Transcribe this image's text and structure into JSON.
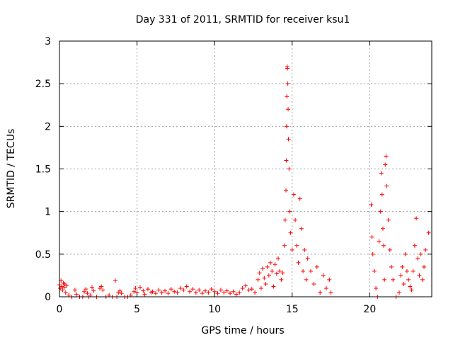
{
  "chart_data": {
    "type": "scatter",
    "title": "Day 331 of 2011, SRMTID for receiver ksu1",
    "xlabel": "GPS time / hours",
    "ylabel": "SRMTID / TECUs",
    "xlim": [
      0,
      24
    ],
    "ylim": [
      0,
      3
    ],
    "grid": true,
    "marker": "+",
    "color": "#ff0000",
    "x_ticks": [
      0,
      5,
      10,
      15,
      20
    ],
    "x_tick_labels": [
      "0",
      "5",
      "10",
      "15",
      "20"
    ],
    "y_ticks": [
      0,
      0.5,
      1,
      1.5,
      2,
      2.5,
      3
    ],
    "y_tick_labels": [
      "0",
      "0.5",
      "1",
      "1.5",
      "2",
      "2.5",
      "3"
    ],
    "series": [
      {
        "name": "ksu1",
        "points": [
          [
            0.0,
            0.14
          ],
          [
            0.05,
            0.1
          ],
          [
            0.1,
            0.19
          ],
          [
            0.15,
            0.12
          ],
          [
            0.2,
            0.08
          ],
          [
            0.25,
            0.16
          ],
          [
            0.3,
            0.11
          ],
          [
            0.35,
            0.15
          ],
          [
            0.4,
            0.05
          ],
          [
            0.45,
            0.13
          ],
          [
            0.6,
            0.02
          ],
          [
            0.8,
            0.0
          ],
          [
            1.0,
            0.08
          ],
          [
            1.1,
            0.03
          ],
          [
            1.3,
            0.0
          ],
          [
            1.5,
            0.0
          ],
          [
            1.6,
            0.06
          ],
          [
            1.7,
            0.09
          ],
          [
            1.8,
            0.04
          ],
          [
            1.9,
            0.0
          ],
          [
            2.0,
            0.02
          ],
          [
            2.1,
            0.11
          ],
          [
            2.2,
            0.07
          ],
          [
            2.4,
            0.0
          ],
          [
            2.6,
            0.1
          ],
          [
            2.7,
            0.12
          ],
          [
            2.8,
            0.08
          ],
          [
            3.0,
            0.0
          ],
          [
            3.2,
            0.02
          ],
          [
            3.4,
            0.0
          ],
          [
            3.6,
            0.19
          ],
          [
            3.7,
            0.0
          ],
          [
            3.8,
            0.05
          ],
          [
            3.9,
            0.07
          ],
          [
            4.0,
            0.04
          ],
          [
            4.2,
            0.0
          ],
          [
            4.4,
            0.0
          ],
          [
            4.6,
            0.02
          ],
          [
            4.8,
            0.06
          ],
          [
            4.9,
            0.1
          ],
          [
            5.0,
            0.05
          ],
          [
            5.2,
            0.11
          ],
          [
            5.4,
            0.07
          ],
          [
            5.5,
            0.03
          ],
          [
            5.7,
            0.09
          ],
          [
            5.9,
            0.05
          ],
          [
            6.0,
            0.06
          ],
          [
            6.2,
            0.04
          ],
          [
            6.4,
            0.08
          ],
          [
            6.6,
            0.05
          ],
          [
            6.8,
            0.07
          ],
          [
            7.0,
            0.04
          ],
          [
            7.2,
            0.09
          ],
          [
            7.4,
            0.06
          ],
          [
            7.6,
            0.05
          ],
          [
            7.8,
            0.1
          ],
          [
            8.0,
            0.08
          ],
          [
            8.2,
            0.12
          ],
          [
            8.4,
            0.06
          ],
          [
            8.6,
            0.09
          ],
          [
            8.8,
            0.05
          ],
          [
            9.0,
            0.08
          ],
          [
            9.2,
            0.04
          ],
          [
            9.4,
            0.07
          ],
          [
            9.6,
            0.05
          ],
          [
            9.8,
            0.09
          ],
          [
            10.0,
            0.06
          ],
          [
            10.2,
            0.04
          ],
          [
            10.4,
            0.08
          ],
          [
            10.6,
            0.05
          ],
          [
            10.8,
            0.07
          ],
          [
            11.0,
            0.04
          ],
          [
            11.2,
            0.06
          ],
          [
            11.4,
            0.03
          ],
          [
            11.6,
            0.05
          ],
          [
            11.8,
            0.1
          ],
          [
            12.0,
            0.13
          ],
          [
            12.2,
            0.08
          ],
          [
            12.4,
            0.09
          ],
          [
            12.6,
            0.05
          ],
          [
            12.8,
            0.2
          ],
          [
            12.9,
            0.28
          ],
          [
            13.0,
            0.1
          ],
          [
            13.1,
            0.33
          ],
          [
            13.2,
            0.22
          ],
          [
            13.3,
            0.15
          ],
          [
            13.4,
            0.35
          ],
          [
            13.5,
            0.25
          ],
          [
            13.6,
            0.4
          ],
          [
            13.7,
            0.3
          ],
          [
            13.8,
            0.12
          ],
          [
            13.9,
            0.38
          ],
          [
            14.0,
            0.27
          ],
          [
            14.1,
            0.45
          ],
          [
            14.2,
            0.3
          ],
          [
            14.3,
            0.2
          ],
          [
            14.4,
            0.28
          ],
          [
            14.5,
            0.6
          ],
          [
            14.55,
            0.9
          ],
          [
            14.6,
            1.25
          ],
          [
            14.62,
            1.6
          ],
          [
            14.64,
            2.0
          ],
          [
            14.66,
            2.35
          ],
          [
            14.68,
            2.7
          ],
          [
            14.7,
            2.68
          ],
          [
            14.72,
            2.5
          ],
          [
            14.74,
            2.2
          ],
          [
            14.76,
            1.85
          ],
          [
            14.8,
            1.5
          ],
          [
            14.85,
            1.0
          ],
          [
            14.9,
            0.75
          ],
          [
            15.0,
            0.55
          ],
          [
            15.1,
            1.2
          ],
          [
            15.2,
            0.9
          ],
          [
            15.3,
            0.6
          ],
          [
            15.4,
            0.4
          ],
          [
            15.5,
            1.15
          ],
          [
            15.6,
            0.8
          ],
          [
            15.7,
            0.3
          ],
          [
            15.8,
            0.55
          ],
          [
            15.9,
            0.2
          ],
          [
            16.0,
            0.45
          ],
          [
            16.2,
            0.3
          ],
          [
            16.4,
            0.15
          ],
          [
            16.6,
            0.35
          ],
          [
            16.8,
            0.05
          ],
          [
            17.0,
            0.25
          ],
          [
            17.2,
            0.1
          ],
          [
            17.4,
            0.2
          ],
          [
            17.5,
            0.05
          ],
          [
            20.1,
            1.08
          ],
          [
            20.15,
            0.7
          ],
          [
            20.2,
            0.5
          ],
          [
            20.3,
            0.3
          ],
          [
            20.4,
            0.1
          ],
          [
            20.5,
            0.0
          ],
          [
            20.6,
            0.65
          ],
          [
            20.7,
            1.0
          ],
          [
            20.75,
            1.45
          ],
          [
            20.8,
            1.2
          ],
          [
            20.85,
            0.8
          ],
          [
            20.9,
            0.6
          ],
          [
            20.95,
            0.2
          ],
          [
            21.0,
            1.55
          ],
          [
            21.05,
            1.65
          ],
          [
            21.1,
            1.3
          ],
          [
            21.2,
            0.9
          ],
          [
            21.3,
            0.55
          ],
          [
            21.4,
            0.35
          ],
          [
            21.5,
            0.2
          ],
          [
            21.7,
            0.0
          ],
          [
            21.9,
            0.05
          ],
          [
            22.0,
            0.25
          ],
          [
            22.1,
            0.35
          ],
          [
            22.2,
            0.15
          ],
          [
            22.3,
            0.5
          ],
          [
            22.4,
            0.3
          ],
          [
            22.5,
            0.2
          ],
          [
            22.6,
            0.12
          ],
          [
            22.7,
            0.08
          ],
          [
            22.8,
            0.3
          ],
          [
            22.9,
            0.6
          ],
          [
            23.0,
            0.92
          ],
          [
            23.1,
            0.45
          ],
          [
            23.2,
            0.25
          ],
          [
            23.3,
            0.5
          ],
          [
            23.4,
            0.2
          ],
          [
            23.5,
            0.35
          ],
          [
            23.6,
            0.55
          ],
          [
            23.8,
            0.75
          ]
        ]
      }
    ]
  }
}
